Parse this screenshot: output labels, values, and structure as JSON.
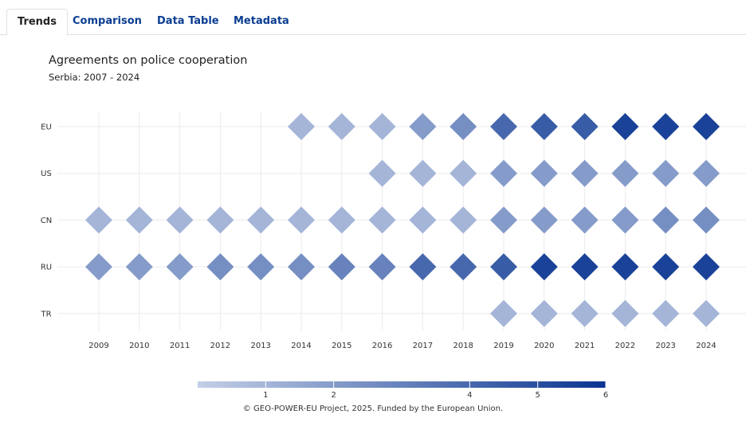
{
  "tabs": [
    {
      "label": "Trends",
      "active": true
    },
    {
      "label": "Comparison",
      "active": false
    },
    {
      "label": "Data Table",
      "active": false
    },
    {
      "label": "Metadata",
      "active": false
    }
  ],
  "footer": "© GEO-POWER-EU Project, 2025. Funded by the European Union.",
  "colors": {
    "low": "#c3cfe6",
    "high": "#0a3591",
    "tab_text": "#0b3d91"
  },
  "chart_data": {
    "type": "heatmap",
    "title": "Agreements on police cooperation",
    "subtitle": "Serbia: 2007 - 2024",
    "x": [
      "2009",
      "2010",
      "2011",
      "2012",
      "2013",
      "2014",
      "2015",
      "2016",
      "2017",
      "2018",
      "2019",
      "2020",
      "2021",
      "2022",
      "2023",
      "2024"
    ],
    "y": [
      "EU",
      "US",
      "CN",
      "RU",
      "TR"
    ],
    "marker": "diamond",
    "grid": true,
    "values": {
      "EU": [
        null,
        null,
        null,
        null,
        null,
        1,
        1,
        1,
        2,
        2.5,
        4,
        4.5,
        4.5,
        5.5,
        5.5,
        5.5
      ],
      "US": [
        null,
        null,
        null,
        null,
        null,
        null,
        null,
        1,
        1,
        1,
        2,
        2,
        2,
        2,
        2,
        2
      ],
      "CN": [
        1,
        1,
        1,
        1,
        1,
        1,
        1,
        1,
        1,
        1,
        2,
        2,
        2,
        2,
        2.5,
        2.5
      ],
      "RU": [
        2,
        2,
        2,
        2.5,
        2.5,
        2.5,
        3,
        3,
        4,
        4,
        4.5,
        5.5,
        5.5,
        5.5,
        5.5,
        5.5
      ],
      "TR": [
        null,
        null,
        null,
        null,
        null,
        null,
        null,
        null,
        null,
        null,
        1,
        1,
        1,
        1,
        1,
        1
      ]
    },
    "colorbar": {
      "min": 0,
      "max": 6,
      "ticks": [
        1,
        2,
        4,
        5,
        6
      ],
      "placement": "bottom"
    }
  }
}
